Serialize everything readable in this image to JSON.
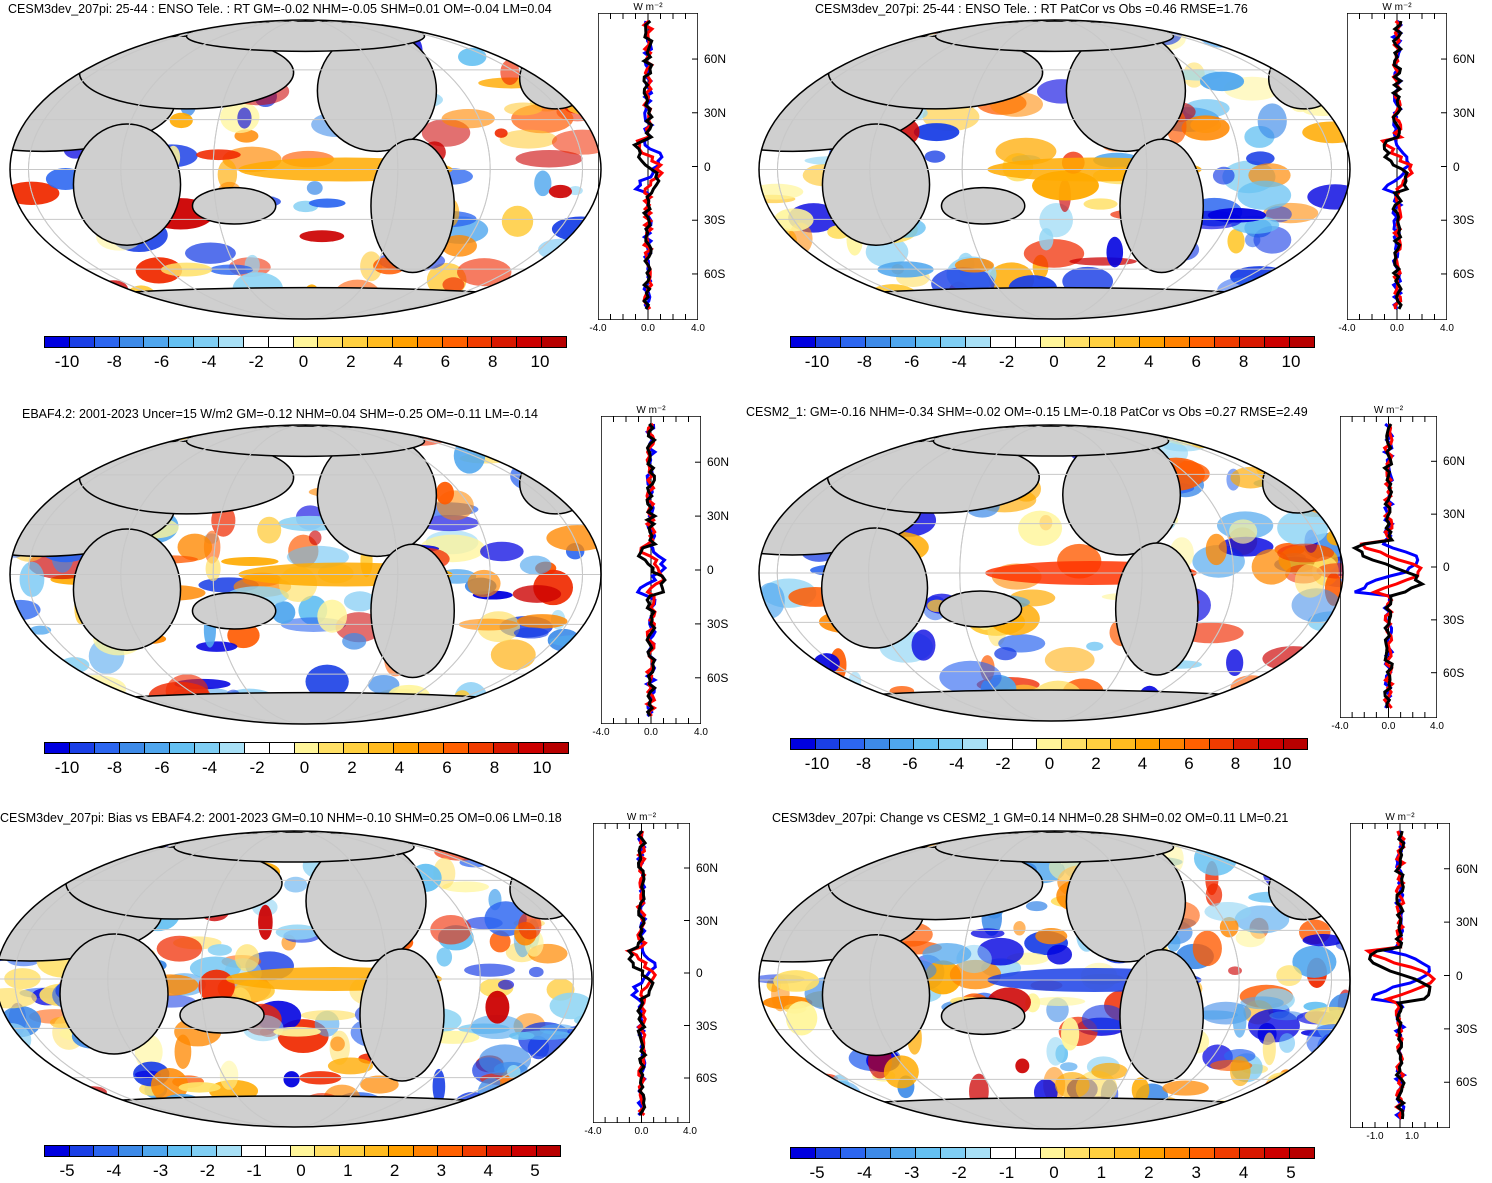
{
  "palette": {
    "full": [
      "#0000e0",
      "#1a3fe6",
      "#2c66f0",
      "#3d8ae8",
      "#4fa6ee",
      "#64c0f2",
      "#8fd4f4",
      "#ffffff",
      "#ffffff",
      "#fff59a",
      "#ffe066",
      "#ffc933",
      "#ffaa00",
      "#ff8800",
      "#ff5a00",
      "#f02a00",
      "#cc0000"
    ]
  },
  "chart_data": [
    {
      "type": "heatmap",
      "title": "CESM3dev_207pi: 25-44 : ENSO Tele. : RT GM=-0.02 NHM=-0.05 SHM=0.01 OM=-0.04 LM=0.04",
      "colorbar_ticks": [
        "-10",
        "-8",
        "-6",
        "-4",
        "-2",
        "0",
        "2",
        "4",
        "6",
        "8",
        "10"
      ],
      "zonal_mean": {
        "units": "W m⁻²",
        "xlim": [
          -4.0,
          4.0
        ],
        "xticks": [
          "-4.0",
          "0.0",
          "4.0"
        ],
        "lat_labels": [
          "60N",
          "30N",
          "0",
          "30S",
          "60S"
        ]
      }
    },
    {
      "type": "heatmap",
      "title": "CESM3dev_207pi: 25-44 : ENSO Tele. : RT PatCor vs Obs =0.46 RMSE=1.76",
      "colorbar_ticks": [
        "-10",
        "-8",
        "-6",
        "-4",
        "-2",
        "0",
        "2",
        "4",
        "6",
        "8",
        "10"
      ],
      "zonal_mean": {
        "units": "W m⁻²",
        "xlim": [
          -4.0,
          4.0
        ],
        "xticks": [
          "-4.0",
          "0.0",
          "4.0"
        ],
        "lat_labels": [
          "60N",
          "30N",
          "0",
          "30S",
          "60S"
        ]
      }
    },
    {
      "type": "heatmap",
      "title": "EBAF4.2: 2001-2023 Uncer=15 W/m2 GM=-0.12 NHM=0.04 SHM=-0.25 OM=-0.11 LM=-0.14",
      "colorbar_ticks": [
        "-10",
        "-8",
        "-6",
        "-4",
        "-2",
        "0",
        "2",
        "4",
        "6",
        "8",
        "10"
      ],
      "zonal_mean": {
        "units": "W m⁻²",
        "xlim": [
          -4.0,
          4.0
        ],
        "xticks": [
          "-4.0",
          "0.0",
          "4.0"
        ],
        "lat_labels": [
          "60N",
          "30N",
          "0",
          "30S",
          "60S"
        ]
      }
    },
    {
      "type": "heatmap",
      "title": "CESM2_1: GM=-0.16 NHM=-0.34 SHM=-0.02 OM=-0.15 LM=-0.18 PatCor vs Obs =0.27 RMSE=2.49",
      "colorbar_ticks": [
        "-10",
        "-8",
        "-6",
        "-4",
        "-2",
        "0",
        "2",
        "4",
        "6",
        "8",
        "10"
      ],
      "zonal_mean": {
        "units": "W m⁻²",
        "xlim": [
          -4.0,
          4.0
        ],
        "xticks": [
          "-4.0",
          "0.0",
          "4.0"
        ],
        "lat_labels": [
          "60N",
          "30N",
          "0",
          "30S",
          "60S"
        ]
      }
    },
    {
      "type": "heatmap",
      "title": "CESM3dev_207pi: Bias vs EBAF4.2: 2001-2023 GM=0.10 NHM=-0.10 SHM=0.25 OM=0.06 LM=0.18",
      "colorbar_ticks": [
        "-5",
        "-4",
        "-3",
        "-2",
        "-1",
        "0",
        "1",
        "2",
        "3",
        "4",
        "5"
      ],
      "zonal_mean": {
        "units": "W m⁻²",
        "xlim": [
          -4.0,
          4.0
        ],
        "xticks": [
          "-4.0",
          "0.0",
          "4.0"
        ],
        "lat_labels": [
          "60N",
          "30N",
          "0",
          "30S",
          "60S"
        ]
      }
    },
    {
      "type": "heatmap",
      "title": "CESM3dev_207pi: Change vs CESM2_1 GM=0.14 NHM=0.28 SHM=0.02 OM=0.11 LM=0.21",
      "colorbar_ticks": [
        "-5",
        "-4",
        "-3",
        "-2",
        "-1",
        "0",
        "1",
        "2",
        "3",
        "4",
        "5"
      ],
      "zonal_mean": {
        "units": "W m⁻²",
        "xlim": [
          -2.0,
          2.0
        ],
        "xticks": [
          "-1.0",
          "1.0"
        ],
        "lat_labels": [
          "60N",
          "30N",
          "0",
          "30S",
          "60S"
        ]
      }
    }
  ]
}
